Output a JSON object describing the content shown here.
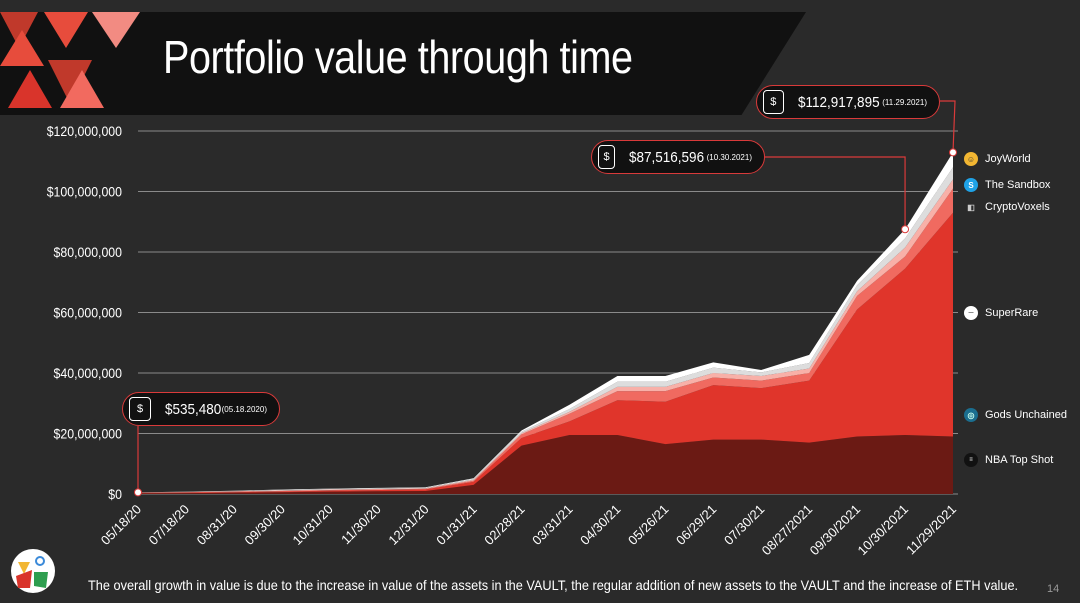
{
  "title": "Portfolio value through time",
  "caption": "The overall growth in value is due to the increase in value of the assets in the VAULT, the regular addition of new assets to the VAULT and the increase of ETH value.",
  "page_number": "14",
  "colors": {
    "accent": "#d93a3a",
    "background": "#2a2a2a",
    "nba_top_shot": "#6b1a14",
    "gods_unchained": "#e0352b",
    "superrare": "#f06a60",
    "cryptovoxels": "#f8b0a8",
    "the_sandbox": "#dddddd",
    "joyworld": "#ffffff"
  },
  "callouts": [
    {
      "value": "$535,480",
      "date": "(05.18.2020)",
      "icon": "money-bag-icon"
    },
    {
      "value": "$87,516,596",
      "date": "(10.30.2021)",
      "icon": "money-bag-icon"
    },
    {
      "value": "$112,917,895",
      "date": "(11.29.2021)",
      "icon": "money-bag-icon"
    }
  ],
  "legend": [
    {
      "label": "JoyWorld",
      "icon": "joyworld-icon"
    },
    {
      "label": "The Sandbox",
      "icon": "sandbox-icon"
    },
    {
      "label": "CryptoVoxels",
      "icon": "cryptovoxels-icon"
    },
    {
      "label": "SuperRare",
      "icon": "superrare-icon"
    },
    {
      "label": "Gods Unchained",
      "icon": "gods-unchained-icon"
    },
    {
      "label": "NBA Top Shot",
      "icon": "nba-top-shot-icon"
    }
  ],
  "chart_data": {
    "type": "area",
    "stacked": true,
    "x": [
      "05/18/20",
      "07/18/20",
      "08/31/20",
      "09/30/20",
      "10/31/20",
      "11/30/20",
      "12/31/20",
      "01/31/21",
      "02/28/21",
      "03/31/21",
      "04/30/21",
      "05/26/21",
      "06/29/21",
      "07/30/21",
      "08/27/2021",
      "09/30/2021",
      "10/30/2021",
      "11/29/2021"
    ],
    "ylim": [
      0,
      120000000
    ],
    "yticks": [
      0,
      20000000,
      40000000,
      60000000,
      80000000,
      100000000,
      120000000
    ],
    "ytick_labels": [
      "$0",
      "$20,000,000",
      "$40,000,000",
      "$60,000,000",
      "$80,000,000",
      "$100,000,000",
      "$120,000,000"
    ],
    "grid": true,
    "legend_position": "right",
    "series": [
      {
        "name": "NBA Top Shot",
        "values": [
          200000,
          300000,
          400000,
          600000,
          800000,
          900000,
          1000000,
          3000000,
          16000000,
          19500000,
          19500000,
          16500000,
          18000000,
          18000000,
          17000000,
          19000000,
          19500000,
          19000000
        ]
      },
      {
        "name": "Gods Unchained",
        "values": [
          150000,
          150000,
          200000,
          200000,
          300000,
          400000,
          500000,
          1000000,
          2500000,
          4500000,
          11500000,
          14000000,
          18000000,
          17000000,
          20500000,
          42000000,
          55000000,
          74000000
        ]
      },
      {
        "name": "SuperRare",
        "values": [
          100000,
          150000,
          200000,
          200000,
          200000,
          200000,
          200000,
          400000,
          1200000,
          2500000,
          3000000,
          3500000,
          2500000,
          2500000,
          2500000,
          4500000,
          4000000,
          8000000
        ]
      },
      {
        "name": "CryptoVoxels",
        "values": [
          50000,
          100000,
          100000,
          200000,
          200000,
          200000,
          200000,
          300000,
          400000,
          700000,
          1400000,
          1400000,
          1500000,
          1500000,
          1500000,
          1500000,
          3000000,
          3000000
        ]
      },
      {
        "name": "The Sandbox",
        "values": [
          20000,
          50000,
          100000,
          200000,
          200000,
          200000,
          200000,
          300000,
          500000,
          900000,
          1700000,
          1700000,
          1800000,
          1200000,
          1800000,
          2000000,
          3000000,
          4000000
        ]
      },
      {
        "name": "JoyWorld",
        "values": [
          15480,
          50000,
          100000,
          100000,
          100000,
          100000,
          100000,
          200000,
          400000,
          1400000,
          1900000,
          1900000,
          1700000,
          800000,
          2700000,
          1500000,
          3016596,
          4917895
        ]
      }
    ]
  }
}
